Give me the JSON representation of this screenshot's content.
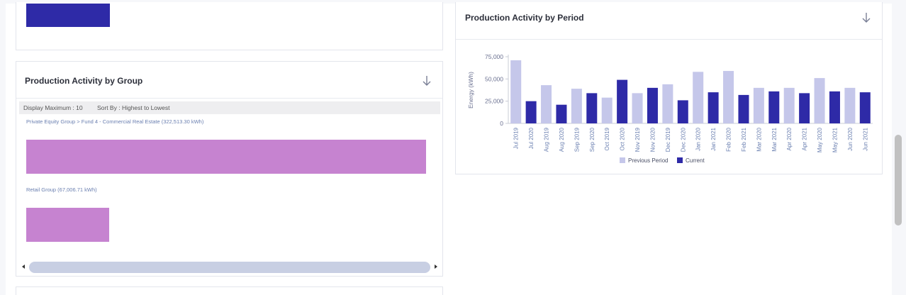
{
  "group_chart": {
    "title": "Production Activity by Group",
    "display_maximum_label": "Display Maximum : 10",
    "sort_by_label": "Sort By : Highest to Lowest",
    "groups": [
      {
        "label": "Private Equity Group > Fund 4 - Commercial Real Estate (322,513.30 kWh)",
        "value": 322513.3
      },
      {
        "label": "Retail Group (67,006.71 kWh)",
        "value": 67006.71
      }
    ],
    "bar_color": "#c683d0",
    "top_bar_color": "#2e2aa7"
  },
  "period_chart": {
    "title": "Production Activity by Period",
    "chart_data": {
      "type": "bar",
      "ylabel": "Energy (kWh)",
      "ylim": [
        0,
        75000
      ],
      "yticks": [
        "0",
        "25,000",
        "50,000",
        "75,000"
      ],
      "ytick_values": [
        0,
        25000,
        50000,
        75000
      ],
      "categories": [
        "Jul 2019",
        "Jul 2020",
        "Aug 2019",
        "Aug 2020",
        "Sep 2019",
        "Sep 2020",
        "Oct 2019",
        "Oct 2020",
        "Nov 2019",
        "Nov 2020",
        "Dec 2019",
        "Dec 2020",
        "Jan 2020",
        "Jan 2021",
        "Feb 2020",
        "Feb 2021",
        "Mar 2020",
        "Mar 2021",
        "Apr 2020",
        "Apr 2021",
        "May 2020",
        "May 2021",
        "Jun 2020",
        "Jun 2021"
      ],
      "series_index": [
        0,
        1,
        0,
        1,
        0,
        1,
        0,
        1,
        0,
        1,
        0,
        1,
        0,
        1,
        0,
        1,
        0,
        1,
        0,
        1,
        0,
        1,
        0,
        1
      ],
      "values": [
        71000,
        25000,
        43000,
        21000,
        39000,
        34000,
        29000,
        49000,
        34000,
        40000,
        44000,
        26000,
        58000,
        35000,
        59000,
        32000,
        40000,
        36000,
        40000,
        34000,
        51000,
        36000,
        40000,
        35000
      ],
      "series": [
        {
          "name": "Previous Period",
          "color": "#c5c7ea"
        },
        {
          "name": "Current",
          "color": "#2e2aa7"
        }
      ],
      "legend": "bottom-center"
    }
  }
}
